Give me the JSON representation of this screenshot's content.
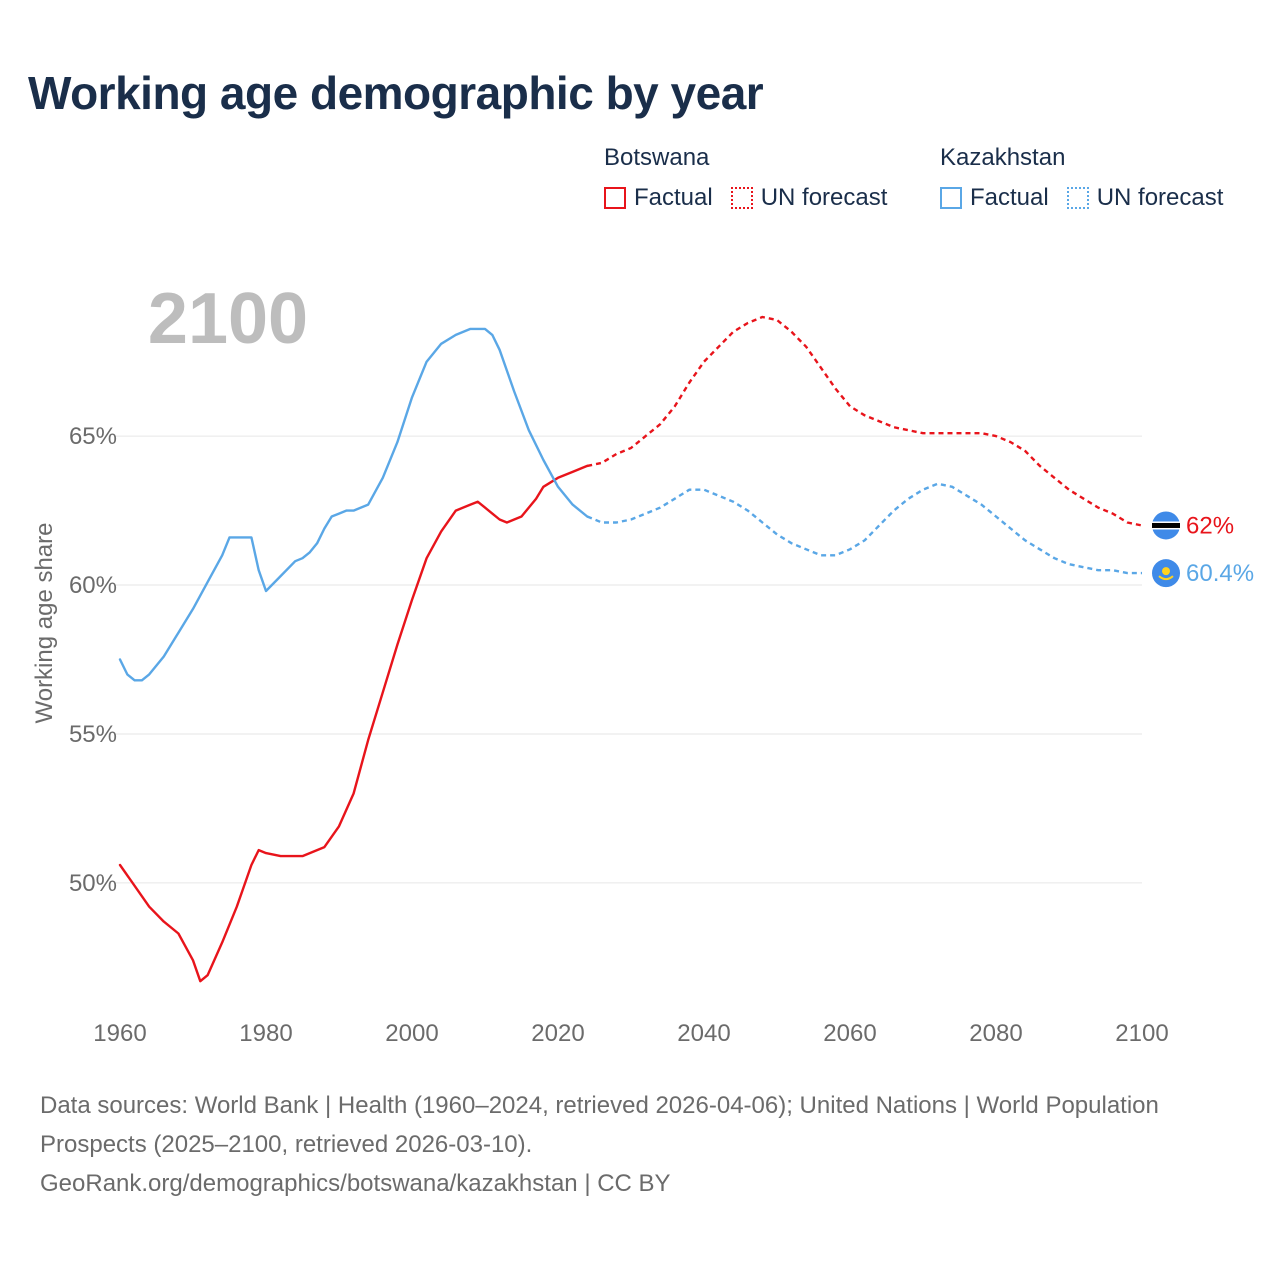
{
  "title": "Working age demographic by year",
  "legend": [
    {
      "country": "Botswana",
      "color": "#e8141b",
      "factual_label": "Factual",
      "forecast_label": "UN forecast"
    },
    {
      "country": "Kazakhstan",
      "color": "#5aa7e6",
      "factual_label": "Factual",
      "forecast_label": "UN forecast"
    }
  ],
  "year_display": "2100",
  "footer": {
    "sources": "Data sources: World Bank | Health (1960–2024, retrieved 2026-04-06); United Nations | World Population Prospects (2025–2100, retrieved 2026-03-10).",
    "credit": "GeoRank.org/demographics/botswana/kazakhstan | CC BY"
  },
  "chart_data": {
    "type": "line",
    "title": "Working age demographic by year",
    "xlabel": "",
    "ylabel": "Working age share",
    "xlim": [
      1960,
      2100
    ],
    "ylim": [
      46,
      69
    ],
    "x_ticks": [
      1960,
      1980,
      2000,
      2020,
      2040,
      2060,
      2080,
      2100
    ],
    "x_tick_labels": [
      "1960",
      "1980",
      "2000",
      "2020",
      "2040",
      "2060",
      "2080",
      "2100"
    ],
    "y_ticks": [
      50,
      55,
      60,
      65
    ],
    "y_tick_labels": [
      "50%",
      "55%",
      "60%",
      "65%"
    ],
    "grid": true,
    "series": [
      {
        "name": "Botswana",
        "color": "#e8141b",
        "end_label": "62%",
        "factual": {
          "x": [
            1960,
            1962,
            1964,
            1966,
            1968,
            1970,
            1971,
            1972,
            1974,
            1976,
            1978,
            1979,
            1980,
            1982,
            1984,
            1985,
            1986,
            1987,
            1988,
            1990,
            1992,
            1994,
            1996,
            1998,
            2000,
            2002,
            2004,
            2006,
            2008,
            2009,
            2010,
            2011,
            2012,
            2013,
            2014,
            2015,
            2016,
            2017,
            2018,
            2020,
            2022,
            2023,
            2024
          ],
          "y": [
            50.6,
            49.9,
            49.2,
            48.7,
            48.3,
            47.4,
            46.7,
            46.9,
            48.0,
            49.2,
            50.6,
            51.1,
            51.0,
            50.9,
            50.9,
            50.9,
            51.0,
            51.1,
            51.2,
            51.9,
            53.0,
            54.8,
            56.4,
            58.0,
            59.5,
            60.9,
            61.8,
            62.5,
            62.7,
            62.8,
            62.6,
            62.4,
            62.2,
            62.1,
            62.2,
            62.3,
            62.6,
            62.9,
            63.3,
            63.6,
            63.8,
            63.9,
            64.0
          ],
          "note": "approximate"
        },
        "forecast": {
          "x": [
            2024,
            2026,
            2028,
            2030,
            2032,
            2034,
            2036,
            2038,
            2040,
            2042,
            2044,
            2046,
            2048,
            2050,
            2052,
            2054,
            2056,
            2058,
            2060,
            2062,
            2064,
            2066,
            2068,
            2070,
            2072,
            2074,
            2076,
            2078,
            2080,
            2082,
            2084,
            2086,
            2088,
            2090,
            2092,
            2094,
            2096,
            2098,
            2100
          ],
          "y": [
            64.0,
            64.1,
            64.4,
            64.6,
            65.0,
            65.4,
            66.0,
            66.8,
            67.5,
            68.0,
            68.5,
            68.8,
            69.0,
            68.9,
            68.5,
            68.0,
            67.3,
            66.6,
            66.0,
            65.7,
            65.5,
            65.3,
            65.2,
            65.1,
            65.1,
            65.1,
            65.1,
            65.1,
            65.0,
            64.8,
            64.5,
            64.0,
            63.6,
            63.2,
            62.9,
            62.6,
            62.4,
            62.1,
            62.0
          ]
        }
      },
      {
        "name": "Kazakhstan",
        "color": "#5aa7e6",
        "end_label": "60.4%",
        "factual": {
          "x": [
            1960,
            1961,
            1962,
            1963,
            1964,
            1966,
            1968,
            1970,
            1972,
            1974,
            1975,
            1976,
            1978,
            1979,
            1980,
            1982,
            1984,
            1985,
            1986,
            1987,
            1988,
            1989,
            1990,
            1991,
            1992,
            1994,
            1996,
            1998,
            2000,
            2002,
            2004,
            2006,
            2008,
            2009,
            2010,
            2011,
            2012,
            2014,
            2016,
            2018,
            2020,
            2022,
            2024
          ],
          "y": [
            57.5,
            57.0,
            56.8,
            56.8,
            57.0,
            57.6,
            58.4,
            59.2,
            60.1,
            61.0,
            61.6,
            61.6,
            61.6,
            60.5,
            59.8,
            60.3,
            60.8,
            60.9,
            61.1,
            61.4,
            61.9,
            62.3,
            62.4,
            62.5,
            62.5,
            62.7,
            63.6,
            64.8,
            66.3,
            67.5,
            68.1,
            68.4,
            68.6,
            68.6,
            68.6,
            68.4,
            67.9,
            66.5,
            65.2,
            64.2,
            63.3,
            62.7,
            62.3
          ]
        },
        "forecast": {
          "x": [
            2024,
            2026,
            2028,
            2030,
            2032,
            2034,
            2036,
            2038,
            2040,
            2042,
            2044,
            2046,
            2048,
            2050,
            2052,
            2054,
            2056,
            2058,
            2060,
            2062,
            2064,
            2066,
            2068,
            2070,
            2072,
            2074,
            2076,
            2078,
            2080,
            2082,
            2084,
            2086,
            2088,
            2090,
            2092,
            2094,
            2096,
            2098,
            2100
          ],
          "y": [
            62.3,
            62.1,
            62.1,
            62.2,
            62.4,
            62.6,
            62.9,
            63.2,
            63.2,
            63.0,
            62.8,
            62.5,
            62.1,
            61.7,
            61.4,
            61.2,
            61.0,
            61.0,
            61.2,
            61.5,
            62.0,
            62.5,
            62.9,
            63.2,
            63.4,
            63.3,
            63.0,
            62.7,
            62.3,
            61.9,
            61.5,
            61.2,
            60.9,
            60.7,
            60.6,
            60.5,
            60.5,
            60.4,
            60.4
          ]
        }
      }
    ]
  }
}
